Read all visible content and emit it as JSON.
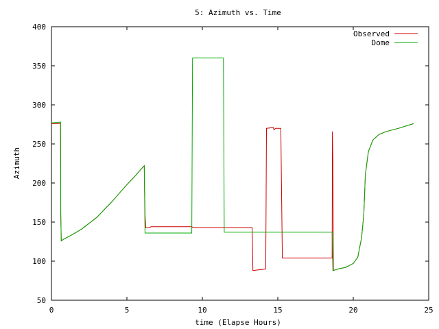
{
  "chart_data": {
    "type": "line",
    "title": "5: Azimuth vs. Time",
    "xlabel": "time (Elapse Hours)",
    "ylabel": "Azimuth",
    "xlim": [
      0,
      25
    ],
    "ylim": [
      50,
      400
    ],
    "xticks": [
      0,
      5,
      10,
      15,
      20,
      25
    ],
    "yticks": [
      50,
      100,
      150,
      200,
      250,
      300,
      350,
      400
    ],
    "grid": false,
    "legend_position": "top-right",
    "series": [
      {
        "name": "Observed",
        "color": "#cc0000",
        "points": [
          [
            0,
            276
          ],
          [
            0.5,
            276
          ],
          [
            0.6,
            277
          ],
          [
            0.62,
            160
          ],
          [
            0.65,
            126
          ],
          [
            0.8,
            128
          ],
          [
            1.2,
            132
          ],
          [
            2,
            141
          ],
          [
            3,
            156
          ],
          [
            4,
            176
          ],
          [
            5,
            198
          ],
          [
            5.5,
            208
          ],
          [
            6,
            219
          ],
          [
            6.15,
            222
          ],
          [
            6.2,
            160
          ],
          [
            6.25,
            143
          ],
          [
            6.5,
            143
          ],
          [
            6.6,
            144
          ],
          [
            9.3,
            144
          ],
          [
            9.4,
            143
          ],
          [
            13.3,
            143
          ],
          [
            13.35,
            88
          ],
          [
            14.2,
            90
          ],
          [
            14.25,
            270
          ],
          [
            14.7,
            271
          ],
          [
            14.75,
            268
          ],
          [
            14.85,
            270
          ],
          [
            15.2,
            270
          ],
          [
            15.3,
            104
          ],
          [
            18.6,
            104
          ],
          [
            18.62,
            266
          ],
          [
            18.65,
            225
          ],
          [
            18.68,
            88
          ],
          [
            19,
            90
          ],
          [
            19.5,
            92
          ],
          [
            20,
            97
          ],
          [
            20.3,
            105
          ],
          [
            20.55,
            130
          ],
          [
            20.7,
            160
          ],
          [
            20.8,
            210
          ],
          [
            21,
            240
          ],
          [
            21.3,
            255
          ],
          [
            21.7,
            262
          ],
          [
            22.2,
            266
          ],
          [
            23,
            270
          ],
          [
            24,
            276
          ]
        ]
      },
      {
        "name": "Dome",
        "color": "#00aa00",
        "points": [
          [
            0,
            277
          ],
          [
            0.6,
            278
          ],
          [
            0.62,
            160
          ],
          [
            0.65,
            126
          ],
          [
            0.8,
            128
          ],
          [
            1.2,
            132
          ],
          [
            2,
            141
          ],
          [
            3,
            156
          ],
          [
            4,
            176
          ],
          [
            5,
            198
          ],
          [
            5.5,
            208
          ],
          [
            6,
            219
          ],
          [
            6.15,
            222
          ],
          [
            6.2,
            136
          ],
          [
            9.3,
            136
          ],
          [
            9.35,
            360
          ],
          [
            11.4,
            360
          ],
          [
            11.45,
            137
          ],
          [
            18.6,
            137
          ],
          [
            18.65,
            88
          ],
          [
            19,
            90
          ],
          [
            19.5,
            92
          ],
          [
            20,
            97
          ],
          [
            20.3,
            105
          ],
          [
            20.55,
            130
          ],
          [
            20.7,
            160
          ],
          [
            20.8,
            210
          ],
          [
            21,
            240
          ],
          [
            21.3,
            255
          ],
          [
            21.7,
            262
          ],
          [
            22.2,
            266
          ],
          [
            23,
            270
          ],
          [
            24,
            276
          ]
        ]
      }
    ]
  }
}
